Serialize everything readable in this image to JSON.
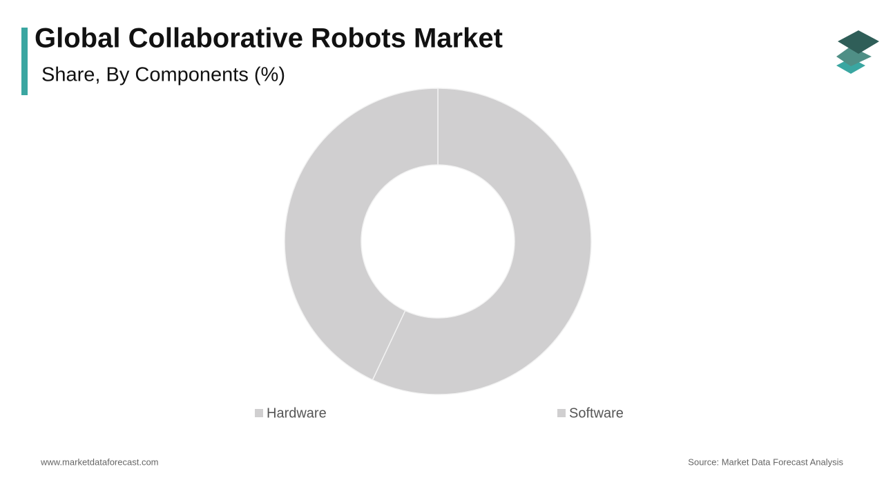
{
  "chart_data": {
    "type": "donut",
    "title": "Global Collaborative Robots Market",
    "subtitle": "Share, By Components (%)",
    "categories": [
      "Hardware",
      "Software"
    ],
    "values": [
      57,
      43
    ],
    "colors": [
      "#d0cfd0",
      "#d0cfd0"
    ]
  },
  "footer": {
    "website": "www.marketdataforecast.com",
    "source": "Source: Market Data Forecast Analysis"
  }
}
